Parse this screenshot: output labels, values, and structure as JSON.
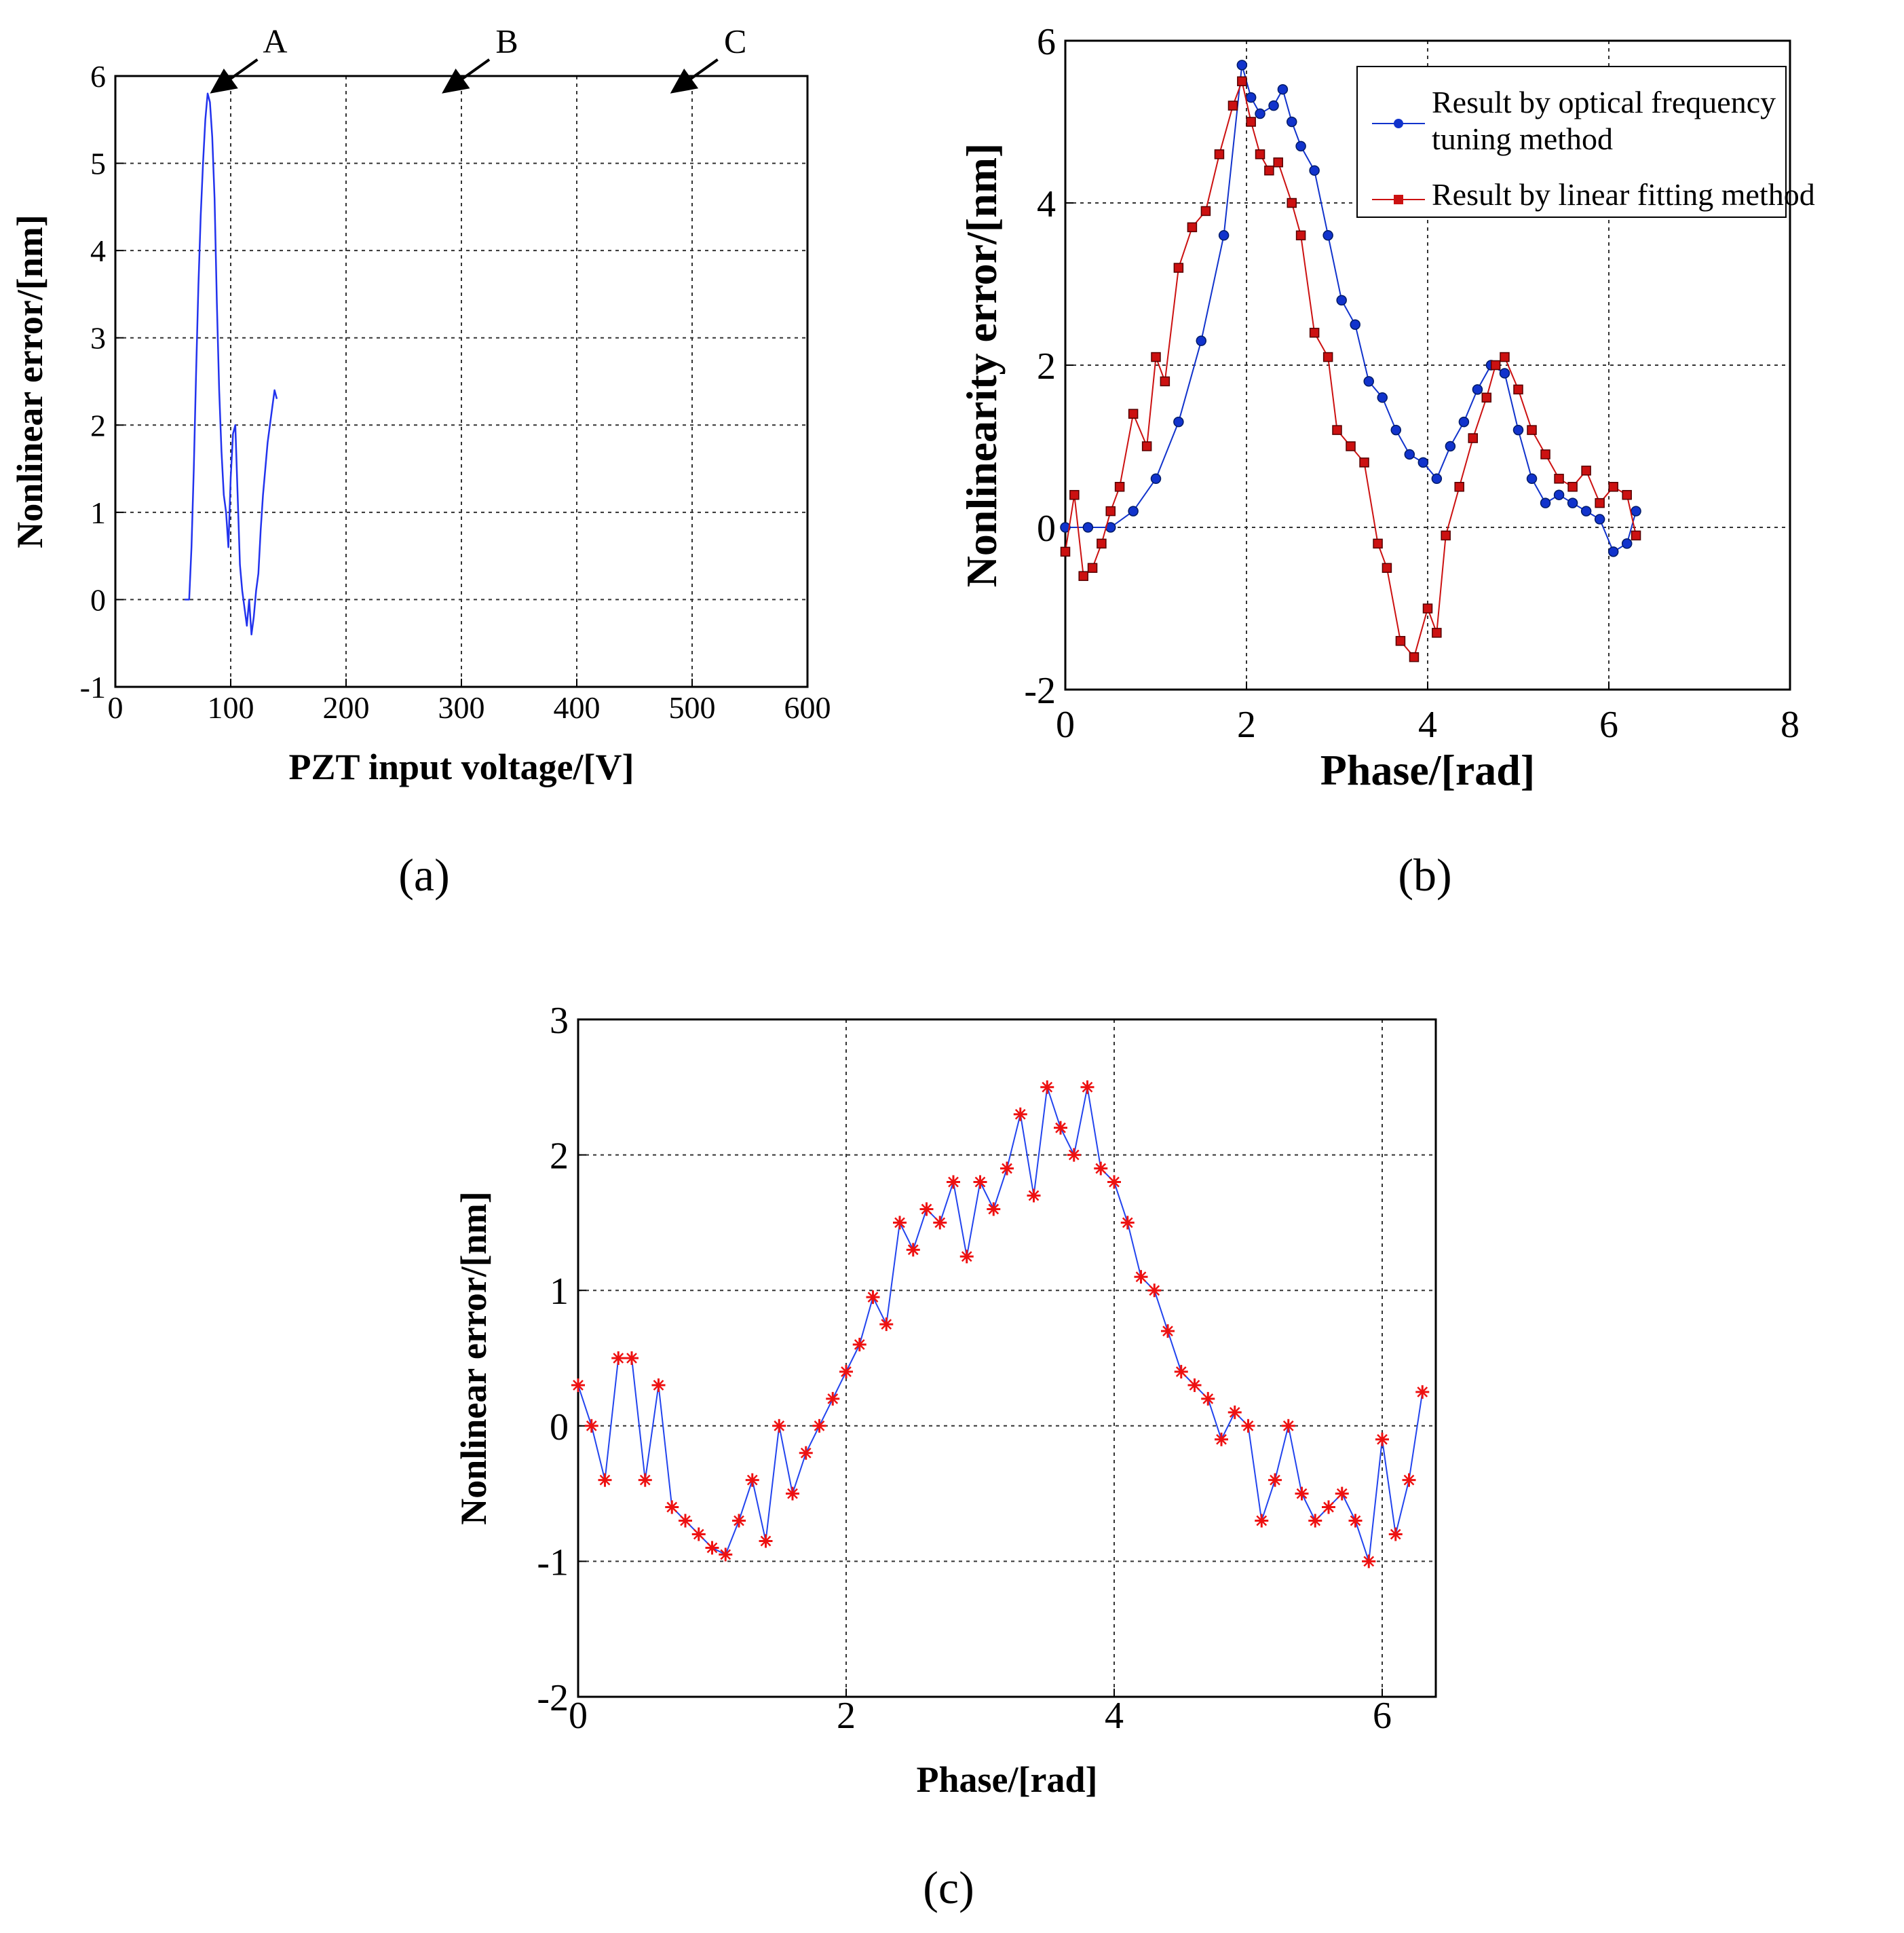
{
  "figure": {
    "panel_labels": [
      "(a)",
      "(b)",
      "(c)"
    ]
  },
  "chart_data": [
    {
      "type": "line",
      "panel": "a",
      "title": "",
      "xlabel": "PZT input voltage/[V]",
      "ylabel": "Nonlinear error/[nm]",
      "xlim": [
        0,
        600
      ],
      "ylim": [
        -1,
        6
      ],
      "xticks": [
        0,
        100,
        200,
        300,
        400,
        500,
        600
      ],
      "yticks": [
        -1,
        0,
        1,
        2,
        3,
        4,
        5,
        6
      ],
      "grid": true,
      "line_color": "#2233ee",
      "annotations": [
        {
          "text": "A",
          "x": 82,
          "y": 5.8
        },
        {
          "text": "B",
          "x": 283,
          "y": 5.8
        },
        {
          "text": "C",
          "x": 481,
          "y": 5.8
        }
      ],
      "series": [
        {
          "name": "Nonlinear error",
          "x": [
            60,
            64,
            66,
            68,
            70,
            72,
            74,
            76,
            78,
            80,
            82,
            84,
            86,
            88,
            90,
            92,
            94,
            96,
            98,
            100,
            102,
            104,
            106,
            108,
            110,
            112,
            114,
            116,
            118,
            120,
            122,
            124,
            126,
            128,
            130,
            132,
            134,
            136,
            138,
            140
          ],
          "y": [
            0,
            0,
            0.6,
            1.5,
            2.6,
            3.6,
            4.4,
            5.0,
            5.5,
            5.8,
            5.7,
            5.3,
            4.6,
            3.4,
            2.4,
            1.7,
            1.2,
            1.0,
            0.6,
            1.4,
            1.9,
            2.0,
            1.2,
            0.4,
            0.1,
            -0.1,
            -0.3,
            0,
            -0.4,
            -0.2,
            0.1,
            0.3,
            0.8,
            1.2,
            1.5,
            1.8,
            2.0,
            2.2,
            2.4,
            2.3
          ]
        }
      ]
    },
    {
      "type": "line",
      "panel": "b",
      "title": "",
      "xlabel": "Phase/[rad]",
      "ylabel": "Nonlinearity error/[nm]",
      "xlim": [
        0,
        8
      ],
      "ylim": [
        -2,
        6
      ],
      "xticks": [
        0,
        2,
        4,
        6,
        8
      ],
      "yticks": [
        -2,
        0,
        2,
        4,
        6
      ],
      "grid": true,
      "legend_position": "top-right",
      "series": [
        {
          "name": "Result by optical frequency tuning method",
          "legend_lines": [
            "Result by optical frequency",
            "tuning method"
          ],
          "color": "#1133cc",
          "marker": "circle",
          "x": [
            0.0,
            0.25,
            0.5,
            0.75,
            1.0,
            1.25,
            1.5,
            1.75,
            1.95,
            2.05,
            2.15,
            2.3,
            2.4,
            2.5,
            2.6,
            2.75,
            2.9,
            3.05,
            3.2,
            3.35,
            3.5,
            3.65,
            3.8,
            3.95,
            4.1,
            4.25,
            4.4,
            4.55,
            4.7,
            4.85,
            5.0,
            5.15,
            5.3,
            5.45,
            5.6,
            5.75,
            5.9,
            6.05,
            6.2,
            6.3
          ],
          "y": [
            0.0,
            0.0,
            0.0,
            0.2,
            0.6,
            1.3,
            2.3,
            3.6,
            5.7,
            5.3,
            5.1,
            5.2,
            5.4,
            5.0,
            4.7,
            4.4,
            3.6,
            2.8,
            2.5,
            1.8,
            1.6,
            1.2,
            0.9,
            0.8,
            0.6,
            1.0,
            1.3,
            1.7,
            2.0,
            1.9,
            1.2,
            0.6,
            0.3,
            0.4,
            0.3,
            0.2,
            0.1,
            -0.3,
            -0.2,
            0.2
          ]
        },
        {
          "name": "Result by linear fitting method",
          "legend_lines": [
            "Result by linear fitting method"
          ],
          "color": "#cc1111",
          "marker": "square",
          "x": [
            0.0,
            0.1,
            0.2,
            0.3,
            0.4,
            0.5,
            0.6,
            0.75,
            0.9,
            1.0,
            1.1,
            1.25,
            1.4,
            1.55,
            1.7,
            1.85,
            1.95,
            2.05,
            2.15,
            2.25,
            2.35,
            2.5,
            2.6,
            2.75,
            2.9,
            3.0,
            3.15,
            3.3,
            3.45,
            3.55,
            3.7,
            3.85,
            4.0,
            4.1,
            4.2,
            4.35,
            4.5,
            4.65,
            4.75,
            4.85,
            5.0,
            5.15,
            5.3,
            5.45,
            5.6,
            5.75,
            5.9,
            6.05,
            6.2,
            6.3
          ],
          "y": [
            -0.3,
            0.4,
            -0.6,
            -0.5,
            -0.2,
            0.2,
            0.5,
            1.4,
            1.0,
            2.1,
            1.8,
            3.2,
            3.7,
            3.9,
            4.6,
            5.2,
            5.5,
            5.0,
            4.6,
            4.4,
            4.5,
            4.0,
            3.6,
            2.4,
            2.1,
            1.2,
            1.0,
            0.8,
            -0.2,
            -0.5,
            -1.4,
            -1.6,
            -1.0,
            -1.3,
            -0.1,
            0.5,
            1.1,
            1.6,
            2.0,
            2.1,
            1.7,
            1.2,
            0.9,
            0.6,
            0.5,
            0.7,
            0.3,
            0.5,
            0.4,
            -0.1
          ]
        }
      ]
    },
    {
      "type": "line",
      "panel": "c",
      "title": "",
      "xlabel": "Phase/[rad]",
      "ylabel": "Nonlinear error/[nm]",
      "xlim": [
        0,
        6.4
      ],
      "ylim": [
        -2,
        3
      ],
      "xticks": [
        0,
        2,
        4,
        6
      ],
      "yticks": [
        -2,
        -1,
        0,
        1,
        2,
        3
      ],
      "grid": true,
      "line_color": "#2244ee",
      "marker_color": "#ee1111",
      "marker": "star",
      "series": [
        {
          "name": "Nonlinear error",
          "x": [
            0.0,
            0.1,
            0.2,
            0.3,
            0.4,
            0.5,
            0.6,
            0.7,
            0.8,
            0.9,
            1.0,
            1.1,
            1.2,
            1.3,
            1.4,
            1.5,
            1.6,
            1.7,
            1.8,
            1.9,
            2.0,
            2.1,
            2.2,
            2.3,
            2.4,
            2.5,
            2.6,
            2.7,
            2.8,
            2.9,
            3.0,
            3.1,
            3.2,
            3.3,
            3.4,
            3.5,
            3.6,
            3.7,
            3.8,
            3.9,
            4.0,
            4.1,
            4.2,
            4.3,
            4.4,
            4.5,
            4.6,
            4.7,
            4.8,
            4.9,
            5.0,
            5.1,
            5.2,
            5.3,
            5.4,
            5.5,
            5.6,
            5.7,
            5.8,
            5.9,
            6.0,
            6.1,
            6.2,
            6.3
          ],
          "y": [
            0.3,
            0.0,
            -0.4,
            0.5,
            0.5,
            -0.4,
            0.3,
            -0.6,
            -0.7,
            -0.8,
            -0.9,
            -0.95,
            -0.7,
            -0.4,
            -0.85,
            0.0,
            -0.5,
            -0.2,
            0.0,
            0.2,
            0.4,
            0.6,
            0.95,
            0.75,
            1.5,
            1.3,
            1.6,
            1.5,
            1.8,
            1.25,
            1.8,
            1.6,
            1.9,
            2.3,
            1.7,
            2.5,
            2.2,
            2.0,
            2.5,
            1.9,
            1.8,
            1.5,
            1.1,
            1.0,
            0.7,
            0.4,
            0.3,
            0.2,
            -0.1,
            0.1,
            0.0,
            -0.7,
            -0.4,
            0.0,
            -0.5,
            -0.7,
            -0.6,
            -0.5,
            -0.7,
            -1.0,
            -0.1,
            -0.8,
            -0.4,
            0.25
          ]
        }
      ]
    }
  ]
}
